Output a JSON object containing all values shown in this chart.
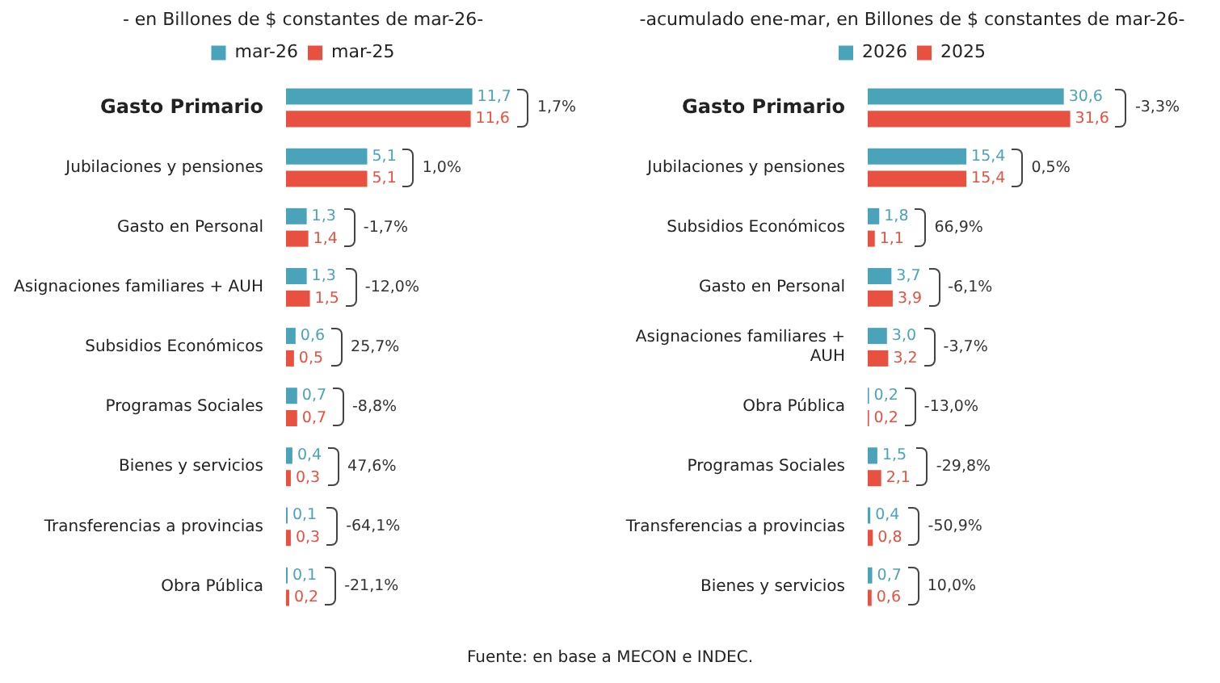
{
  "chart_data": [
    {
      "type": "bar",
      "orientation": "horizontal",
      "title": "- en Billones de $ constantes de mar-26-",
      "categories": [
        "Gasto Primario",
        "Jubilaciones y pensiones",
        "Gasto en Personal",
        "Asignaciones familiares + AUH",
        "Subsidios Económicos",
        "Programas Sociales",
        "Bienes y servicios",
        "Transferencias a provincias",
        "Obra Pública"
      ],
      "series": [
        {
          "name": "mar-26",
          "color": "#4ba3b9",
          "values": [
            11.7,
            5.1,
            1.3,
            1.3,
            0.6,
            0.7,
            0.4,
            0.1,
            0.1
          ],
          "value_labels": [
            "11,7",
            "5,1",
            "1,3",
            "1,3",
            "0,6",
            "0,7",
            "0,4",
            "0,1",
            "0,1"
          ]
        },
        {
          "name": "mar-25",
          "color": "#e8503f",
          "values": [
            11.6,
            5.1,
            1.4,
            1.5,
            0.5,
            0.7,
            0.3,
            0.3,
            0.2
          ],
          "value_labels": [
            "11,6",
            "5,1",
            "1,4",
            "1,5",
            "0,5",
            "0,7",
            "0,3",
            "0,3",
            "0,2"
          ]
        }
      ],
      "tick_labels": "y",
      "legend": "top",
      "annotations": [
        "1,7%",
        "1,0%",
        "-1,7%",
        "-12,0%",
        "25,7%",
        "-8,8%",
        "47,6%",
        "-64,1%",
        "-21,1%",
        "Fuente: en base a MECON e INDEC."
      ]
    },
    {
      "type": "bar",
      "orientation": "horizontal",
      "title": "-acumulado ene-mar, en Billones de $ constantes de mar-26-",
      "categories": [
        "Gasto Primario",
        "Jubilaciones y pensiones",
        "Subsidios Económicos",
        "Gasto en Personal",
        "Asignaciones familiares + AUH",
        "Obra Pública",
        "Programas Sociales",
        "Transferencias a provincias",
        "Bienes y servicios"
      ],
      "series": [
        {
          "name": "2026",
          "color": "#4ba3b9",
          "values": [
            30.6,
            15.4,
            1.8,
            3.7,
            3.0,
            0.2,
            1.5,
            0.4,
            0.7
          ],
          "value_labels": [
            "30,6",
            "15,4",
            "1,8",
            "3,7",
            "3,0",
            "0,2",
            "1,5",
            "0,4",
            "0,7"
          ]
        },
        {
          "name": "2025",
          "color": "#e8503f",
          "values": [
            31.6,
            15.4,
            1.1,
            3.9,
            3.2,
            0.2,
            2.1,
            0.8,
            0.6
          ],
          "value_labels": [
            "31,6",
            "15,4",
            "1,1",
            "3,9",
            "3,2",
            "0,2",
            "2,1",
            "0,8",
            "0,6"
          ]
        }
      ],
      "tick_labels": "y",
      "legend": "top",
      "annotations": [
        "-3,3%",
        "0,5%",
        "66,9%",
        "-6,1%",
        "-3,7%",
        "-13,0%",
        "-29,8%",
        "-50,9%",
        "10,0%"
      ]
    }
  ]
}
